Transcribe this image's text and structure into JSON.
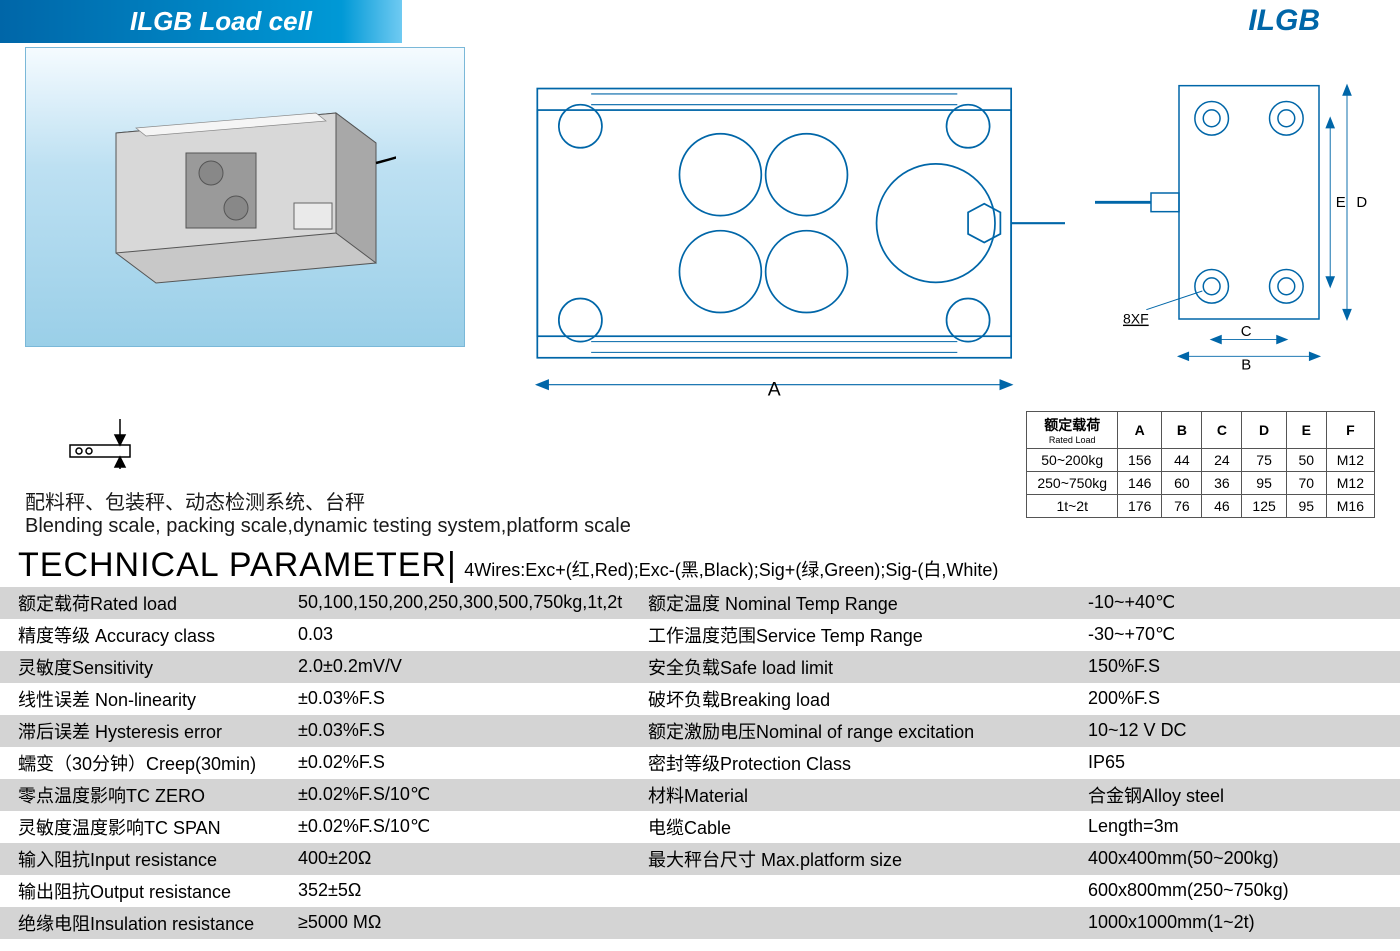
{
  "header": {
    "title": "ILGB  Load cell",
    "brand_right": "ILGB"
  },
  "colors": {
    "title_bg_start": "#0066a8",
    "title_bg_end": "#6fcaf2",
    "brand_color": "#0066a8",
    "drawing_stroke": "#0066a8",
    "table_border": "#555555",
    "param_row_shade": "#d4d4d4"
  },
  "drawings": {
    "top_label_A": "A",
    "side_label_B": "B",
    "side_label_C": "C",
    "side_label_D": "D",
    "side_label_E": "E",
    "side_hole_note": "8XF"
  },
  "applications": {
    "cn": "配料秤、包装秤、动态检测系统、台秤",
    "en": "Blending scale, packing scale,dynamic testing system,platform scale"
  },
  "dim_table": {
    "header_cn": "额定载荷",
    "header_en": "Rated Load",
    "columns": [
      "A",
      "B",
      "C",
      "D",
      "E",
      "F"
    ],
    "rows": [
      {
        "label": "50~200kg",
        "cells": [
          "156",
          "44",
          "24",
          "75",
          "50",
          "M12"
        ]
      },
      {
        "label": "250~750kg",
        "cells": [
          "146",
          "60",
          "36",
          "95",
          "70",
          "M12"
        ]
      },
      {
        "label": "1t~2t",
        "cells": [
          "176",
          "76",
          "46",
          "125",
          "95",
          "M16"
        ]
      }
    ]
  },
  "section": {
    "title": "TECHNICAL PARAMETER",
    "wire_note": "4Wires:Exc+(红,Red);Exc-(黑,Black);Sig+(绿,Green);Sig-(白,White)"
  },
  "params": {
    "rows": [
      {
        "l1": "额定载荷Rated load",
        "v1": "50,100,150,200,250,300,500,750kg,1t,2t",
        "l2": "额定温度 Nominal Temp Range",
        "v2": "-10~+40℃"
      },
      {
        "l1": "精度等级 Accuracy class",
        "v1": "0.03",
        "l2": "工作温度范围Service Temp Range",
        "v2": "-30~+70℃"
      },
      {
        "l1": "灵敏度Sensitivity",
        "v1": "2.0±0.2mV/V",
        "l2": "安全负载Safe load limit",
        "v2": "150%F.S"
      },
      {
        "l1": "线性误差 Non-linearity",
        "v1": "±0.03%F.S",
        "l2": "破坏负载Breaking load",
        "v2": "200%F.S"
      },
      {
        "l1": "滞后误差 Hysteresis error",
        "v1": "±0.03%F.S",
        "l2": "额定激励电压Nominal of range excitation",
        "v2": "10~12 V DC"
      },
      {
        "l1": "蠕变（30分钟）Creep(30min)",
        "v1": "±0.02%F.S",
        "l2": "密封等级Protection Class",
        "v2": "IP65"
      },
      {
        "l1": "零点温度影响TC ZERO",
        "v1": "±0.02%F.S/10℃",
        "l2": "材料Material",
        "v2": "合金钢Alloy steel"
      },
      {
        "l1": "灵敏度温度影响TC SPAN",
        "v1": "±0.02%F.S/10℃",
        "l2": "电缆Cable",
        "v2": "Length=3m"
      },
      {
        "l1": "输入阻抗Input resistance",
        "v1": "400±20Ω",
        "l2": "最大秤台尺寸 Max.platform size",
        "v2": "400x400mm(50~200kg)"
      },
      {
        "l1": "输出阻抗Output resistance",
        "v1": "352±5Ω",
        "l2": "",
        "v2": "600x800mm(250~750kg)"
      },
      {
        "l1": "绝缘电阻Insulation resistance",
        "v1": "≥5000 MΩ",
        "l2": "",
        "v2": "1000x1000mm(1~2t)"
      }
    ]
  }
}
